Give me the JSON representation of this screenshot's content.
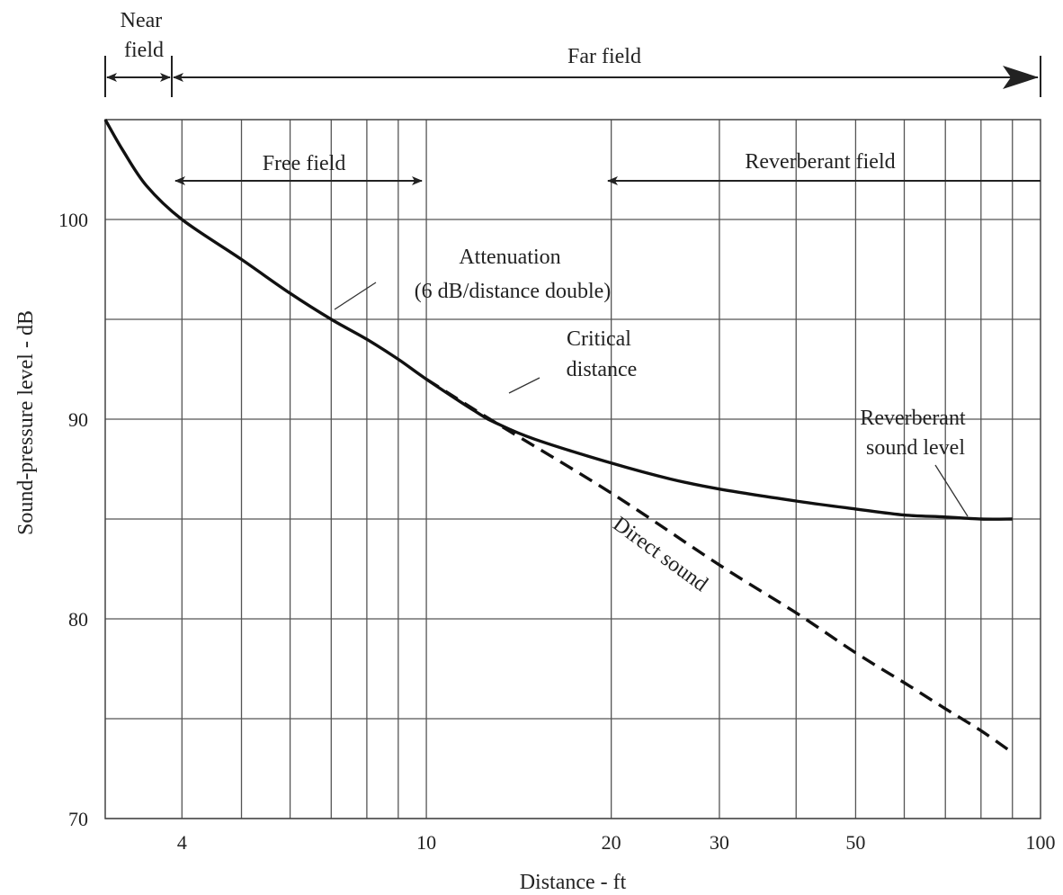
{
  "chart_data": {
    "type": "line",
    "title": "",
    "xlabel": "Distance - ft",
    "ylabel": "Sound-pressure level - dB",
    "x_scale": "log",
    "xlim": [
      3,
      100
    ],
    "ylim": [
      70,
      105
    ],
    "grid": true,
    "x_ticks": [
      {
        "value": 4,
        "label": "4"
      },
      {
        "value": 10,
        "label": "10"
      },
      {
        "value": 20,
        "label": "20"
      },
      {
        "value": 30,
        "label": "30"
      },
      {
        "value": 50,
        "label": "50"
      },
      {
        "value": 100,
        "label": "100"
      }
    ],
    "y_ticks": [
      {
        "value": 70,
        "label": "70"
      },
      {
        "value": 80,
        "label": "80"
      },
      {
        "value": 90,
        "label": "90"
      },
      {
        "value": 100,
        "label": "100"
      }
    ],
    "y_minor_gridlines": [
      75,
      85,
      95
    ],
    "series": [
      {
        "style": "solid",
        "x": [
          3,
          3.2,
          3.5,
          4,
          5,
          6,
          7,
          8,
          9,
          10,
          12,
          13,
          15,
          20,
          25,
          30,
          40,
          50,
          60,
          70,
          80,
          90
        ],
        "y": [
          105,
          103.5,
          101.7,
          100,
          98,
          96.3,
          95,
          94,
          93,
          92,
          90.4,
          89.8,
          89,
          87.8,
          87,
          86.5,
          85.9,
          85.5,
          85.2,
          85.1,
          85,
          85
        ]
      },
      {
        "style": "dashed",
        "x": [
          10,
          13,
          20,
          30,
          40,
          50,
          60,
          70,
          80,
          90
        ],
        "y": [
          92,
          89.8,
          86.3,
          82.7,
          80.3,
          78.3,
          76.8,
          75.5,
          74.4,
          73.3
        ]
      }
    ],
    "annotations": {
      "near_field": [
        "Near",
        "field"
      ],
      "far_field": "Far field",
      "free_field": "Free field",
      "reverberant_field": "Reverberant field",
      "attenuation": [
        "Attenuation",
        "(6 dB/distance double)"
      ],
      "critical_distance": [
        "Critical",
        "distance"
      ],
      "reverberant_level": [
        "Reverberant",
        "sound level"
      ],
      "direct_sound": "Direct sound"
    },
    "field_markers": {
      "near_field_range_ft": [
        3,
        4
      ],
      "far_field_range_ft": [
        4,
        100
      ],
      "free_field_range_ft": [
        4,
        10
      ],
      "reverberant_field_start_ft": 20,
      "critical_distance_ft": 13
    }
  }
}
